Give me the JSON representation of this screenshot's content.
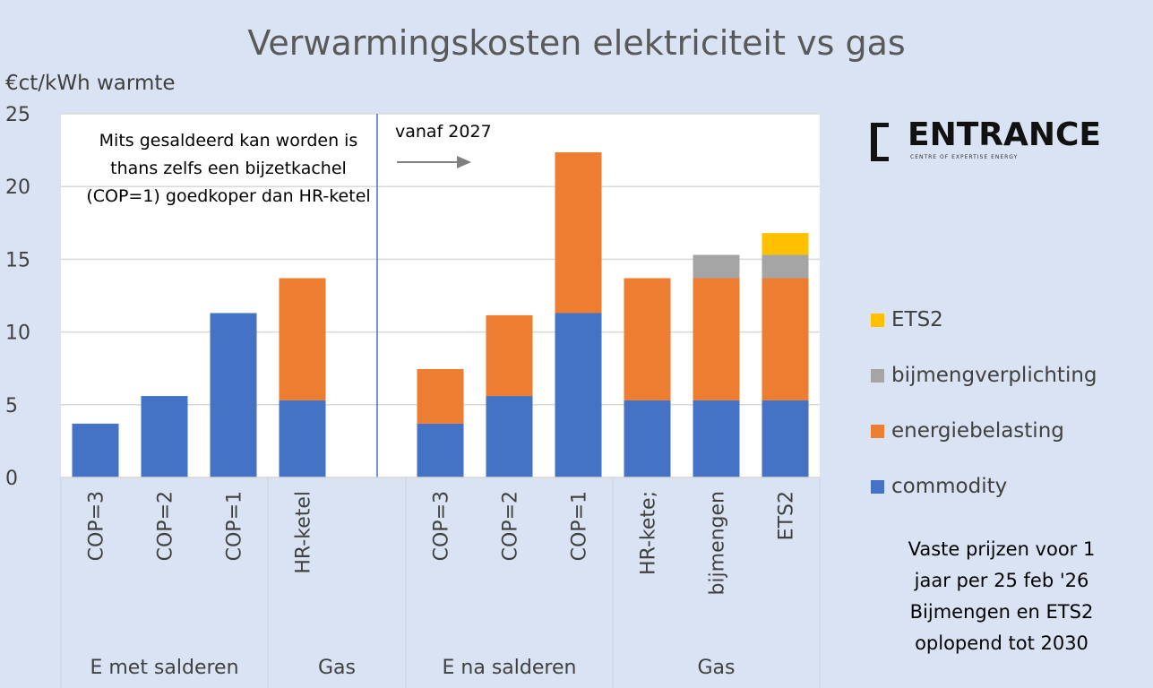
{
  "chart_data": {
    "type": "bar",
    "stacked": true,
    "title": "Verwarmingskosten elektriciteit vs gas",
    "ylabel": "€ct/kWh warmte",
    "xlabel": "",
    "ylim": [
      0,
      25
    ],
    "yticks": [
      0,
      5,
      10,
      15,
      20,
      25
    ],
    "grid": true,
    "legend_position": "right",
    "categories": [
      "COP=3",
      "COP=2",
      "COP=1",
      "HR-ketel",
      "",
      "COP=3",
      "COP=2",
      "COP=1",
      "HR-kete;",
      "bijmengen",
      "ETS2"
    ],
    "groups": [
      {
        "label": "E met salderen",
        "span": 3
      },
      {
        "label": "Gas",
        "span": 2
      },
      {
        "label": "E na salderen",
        "span": 3
      },
      {
        "label": "Gas",
        "span": 3
      }
    ],
    "series": [
      {
        "name": "commodity",
        "color": "#4472c4",
        "values": [
          3.7,
          5.6,
          11.3,
          5.3,
          0,
          3.7,
          5.6,
          11.3,
          5.3,
          5.3,
          5.3
        ]
      },
      {
        "name": "energiebelasting",
        "color": "#ed7d31",
        "values": [
          0,
          0,
          0,
          8.4,
          0,
          3.75,
          5.55,
          11.05,
          8.4,
          8.4,
          8.4
        ]
      },
      {
        "name": "bijmengverplichting",
        "color": "#a5a5a5",
        "values": [
          0,
          0,
          0,
          0,
          0,
          0,
          0,
          0,
          0,
          1.6,
          1.6
        ]
      },
      {
        "name": "ETS2",
        "color": "#ffc000",
        "values": [
          0,
          0,
          0,
          0,
          0,
          0,
          0,
          0,
          0,
          0,
          1.5
        ]
      }
    ],
    "annotations": [
      "Mits gesaldeerd kan worden is thans zelfs een bijzetkachel (COP=1) goedkoper dan HR-ketel",
      "vanaf 2027"
    ]
  },
  "logo": {
    "name": "ENTRANCE",
    "subtitle": "CENTRE OF EXPERTISE ENERGY"
  },
  "footnote": [
    "Vaste prijzen voor 1",
    "jaar per 25 feb '26",
    "Bijmengen en ETS2",
    "oplopend tot 2030"
  ]
}
